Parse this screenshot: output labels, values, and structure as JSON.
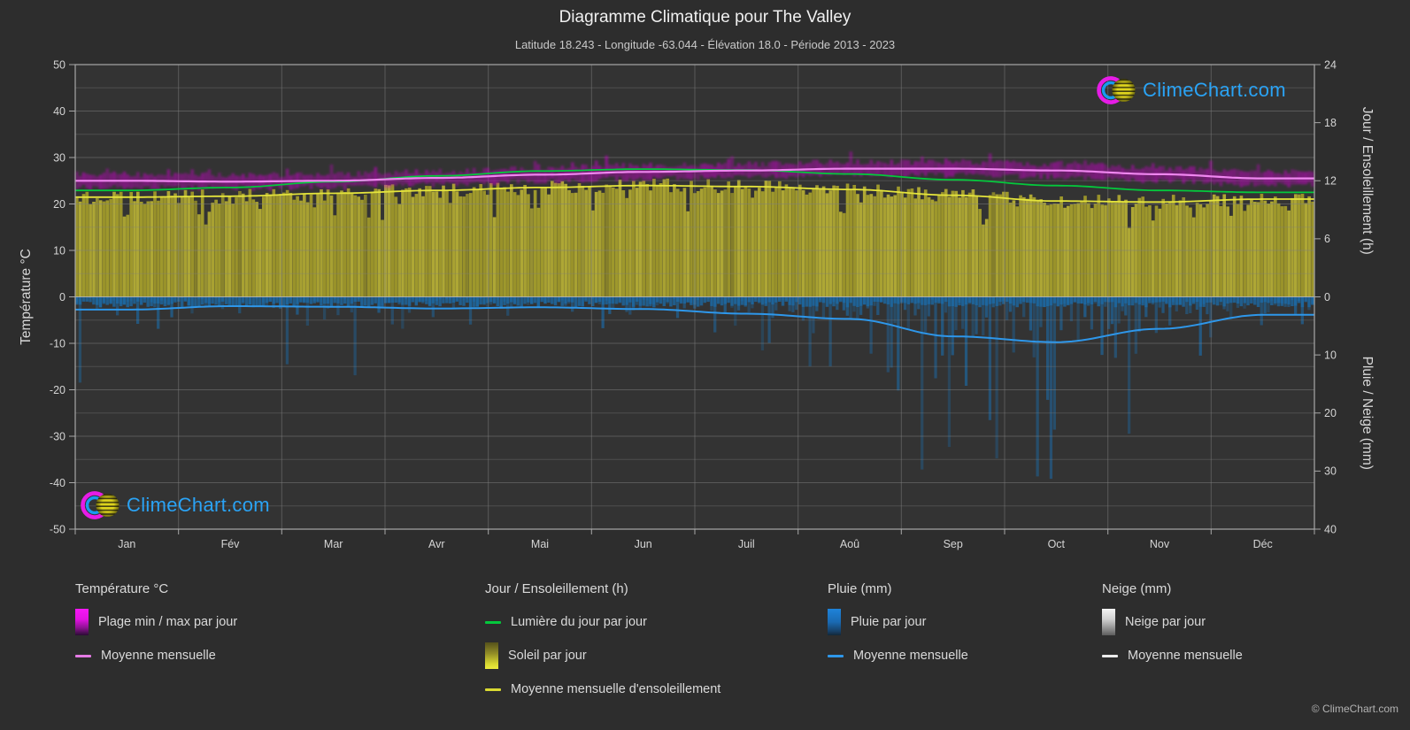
{
  "title": "Diagramme Climatique pour The Valley",
  "subtitle": "Latitude 18.243 - Longitude -63.044 - Élévation 18.0 - Période 2013 - 2023",
  "watermark": {
    "text": "ClimeChart.com",
    "copyright": "© ClimeChart.com"
  },
  "axes": {
    "left": {
      "label": "Température °C",
      "ticks": [
        50,
        40,
        30,
        20,
        10,
        0,
        -10,
        -20,
        -30,
        -40,
        -50
      ]
    },
    "right_top": {
      "label": "Jour / Ensoleillement (h)",
      "ticks": [
        24,
        18,
        12,
        6,
        0
      ]
    },
    "right_bottom": {
      "label": "Pluie / Neige (mm)",
      "ticks": [
        10,
        20,
        30,
        40
      ]
    }
  },
  "chart_data": {
    "type": "climate-composite",
    "months": [
      "Jan",
      "Fév",
      "Mar",
      "Avr",
      "Mai",
      "Jun",
      "Juil",
      "Aoû",
      "Sep",
      "Oct",
      "Nov",
      "Déc"
    ],
    "temp_c": {
      "mean": [
        25.0,
        24.8,
        25.0,
        25.6,
        26.3,
        26.9,
        27.2,
        27.6,
        27.6,
        27.2,
        26.4,
        25.5
      ],
      "daily_max": [
        26.4,
        26.2,
        26.4,
        27.0,
        27.7,
        28.3,
        28.6,
        29.0,
        29.0,
        28.6,
        27.8,
        26.9
      ],
      "daily_min": [
        23.6,
        23.4,
        23.6,
        24.2,
        24.9,
        25.5,
        25.8,
        26.2,
        26.2,
        25.8,
        25.0,
        24.1
      ]
    },
    "daylight_h": [
      11.0,
      11.3,
      11.9,
      12.5,
      13.0,
      13.2,
      13.1,
      12.7,
      12.1,
      11.5,
      11.0,
      10.8
    ],
    "sunshine_h": [
      10.3,
      10.4,
      10.7,
      11.0,
      11.3,
      11.5,
      11.4,
      11.1,
      10.5,
      9.9,
      9.8,
      10.1
    ],
    "rain_mm_daily_mean": [
      2.2,
      1.6,
      1.7,
      2.0,
      1.8,
      2.1,
      2.9,
      3.8,
      6.8,
      7.8,
      5.5,
      3.1
    ],
    "snow_mm_daily_mean": [
      0,
      0,
      0,
      0,
      0,
      0,
      0,
      0,
      0,
      0,
      0,
      0
    ],
    "axis_ranges": {
      "temp_c": [
        -50,
        50
      ],
      "sun_h": [
        0,
        24
      ],
      "precip_mm": [
        0,
        40
      ]
    },
    "grid": "on",
    "legend_position": "bottom"
  },
  "legend": {
    "sections": [
      {
        "title": "Température °C",
        "items": [
          {
            "swatch": "magenta-block",
            "label": "Plage min / max par jour"
          },
          {
            "swatch": "magenta-line",
            "label": "Moyenne mensuelle"
          }
        ]
      },
      {
        "title": "Jour / Ensoleillement (h)",
        "items": [
          {
            "swatch": "green-line",
            "label": "Lumière du jour par jour"
          },
          {
            "swatch": "yellow-block",
            "label": "Soleil par jour"
          },
          {
            "swatch": "yellow-line",
            "label": "Moyenne mensuelle d'ensoleillement"
          }
        ]
      },
      {
        "title": "Pluie (mm)",
        "items": [
          {
            "swatch": "blue-block",
            "label": "Pluie par jour"
          },
          {
            "swatch": "blue-line",
            "label": "Moyenne mensuelle"
          }
        ]
      },
      {
        "title": "Neige (mm)",
        "items": [
          {
            "swatch": "white-block",
            "label": "Neige par jour"
          },
          {
            "swatch": "white-line",
            "label": "Moyenne mensuelle"
          }
        ]
      }
    ]
  },
  "colors": {
    "background": "#2d2d2d",
    "plot_background": "#333333",
    "grid": "#808080",
    "zero_line": "#b4b4b4",
    "axis": "#a8a8a8",
    "tick_text": "#d4d4d4",
    "axis_title_text": "#d8d8d8",
    "temp_band": "#c800c8",
    "temp_mean_line": "#ef86ef",
    "daylight_line": "#04c83c",
    "sun_fill_shades": [
      "#a8a132",
      "#9e982c",
      "#aea735",
      "#99922a"
    ],
    "sun_mean_line": "#e4e43c",
    "rain_fill": "#1c6caa",
    "rain_mean_line": "#2e97ea",
    "snow_fill": "#e0e0e0",
    "logo_text": "#2aa3f5"
  }
}
